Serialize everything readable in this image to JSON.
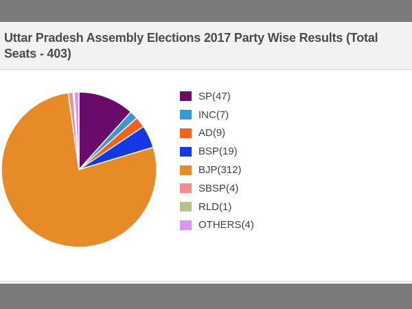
{
  "chart_data": {
    "type": "pie",
    "title": "Uttar Pradesh Assembly Elections 2017 Party Wise Results (Total Seats - 403)",
    "series": [
      {
        "name": "SP(47)",
        "value": 47,
        "color": "#6b0a6b"
      },
      {
        "name": "INC(7)",
        "value": 7,
        "color": "#3a97d6"
      },
      {
        "name": "AD(9)",
        "value": 9,
        "color": "#f2611d"
      },
      {
        "name": "BSP(19)",
        "value": 19,
        "color": "#1438e6"
      },
      {
        "name": "BJP(312)",
        "value": 312,
        "color": "#e78a28"
      },
      {
        "name": "SBSP(4)",
        "value": 4,
        "color": "#f48e8e"
      },
      {
        "name": "RLD(1)",
        "value": 1,
        "color": "#b9c18a"
      },
      {
        "name": "OTHERS(4)",
        "value": 4,
        "color": "#d79af2"
      }
    ],
    "legend_position": "right"
  }
}
